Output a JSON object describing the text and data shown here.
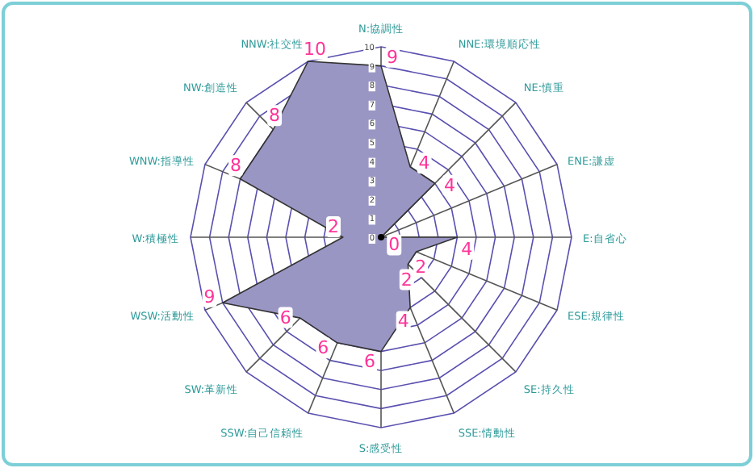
{
  "chart_data": {
    "type": "radar",
    "categories": [
      "N:協調性",
      "NNE:環境順応性",
      "NE:慎重",
      "ENE:謙虚",
      "E:自省心",
      "ESE:規律性",
      "SE:持久性",
      "SSE:情動性",
      "S:感受性",
      "SSW:自己信頼性",
      "SW:革新性",
      "WSW:活動性",
      "W:積極性",
      "WNW:指導性",
      "NW:創造性",
      "NNW:社交性"
    ],
    "series": [
      {
        "color": "#9a96c4",
        "values": [
          9,
          4,
          4,
          0,
          4,
          2,
          2,
          4,
          6,
          6,
          6,
          9,
          2,
          8,
          8,
          10
        ]
      }
    ],
    "ylim": [
      0,
      10
    ],
    "yticks": [
      0,
      1,
      2,
      3,
      4,
      5,
      6,
      7,
      8,
      9,
      10
    ],
    "grid": true,
    "data_labels": true
  }
}
